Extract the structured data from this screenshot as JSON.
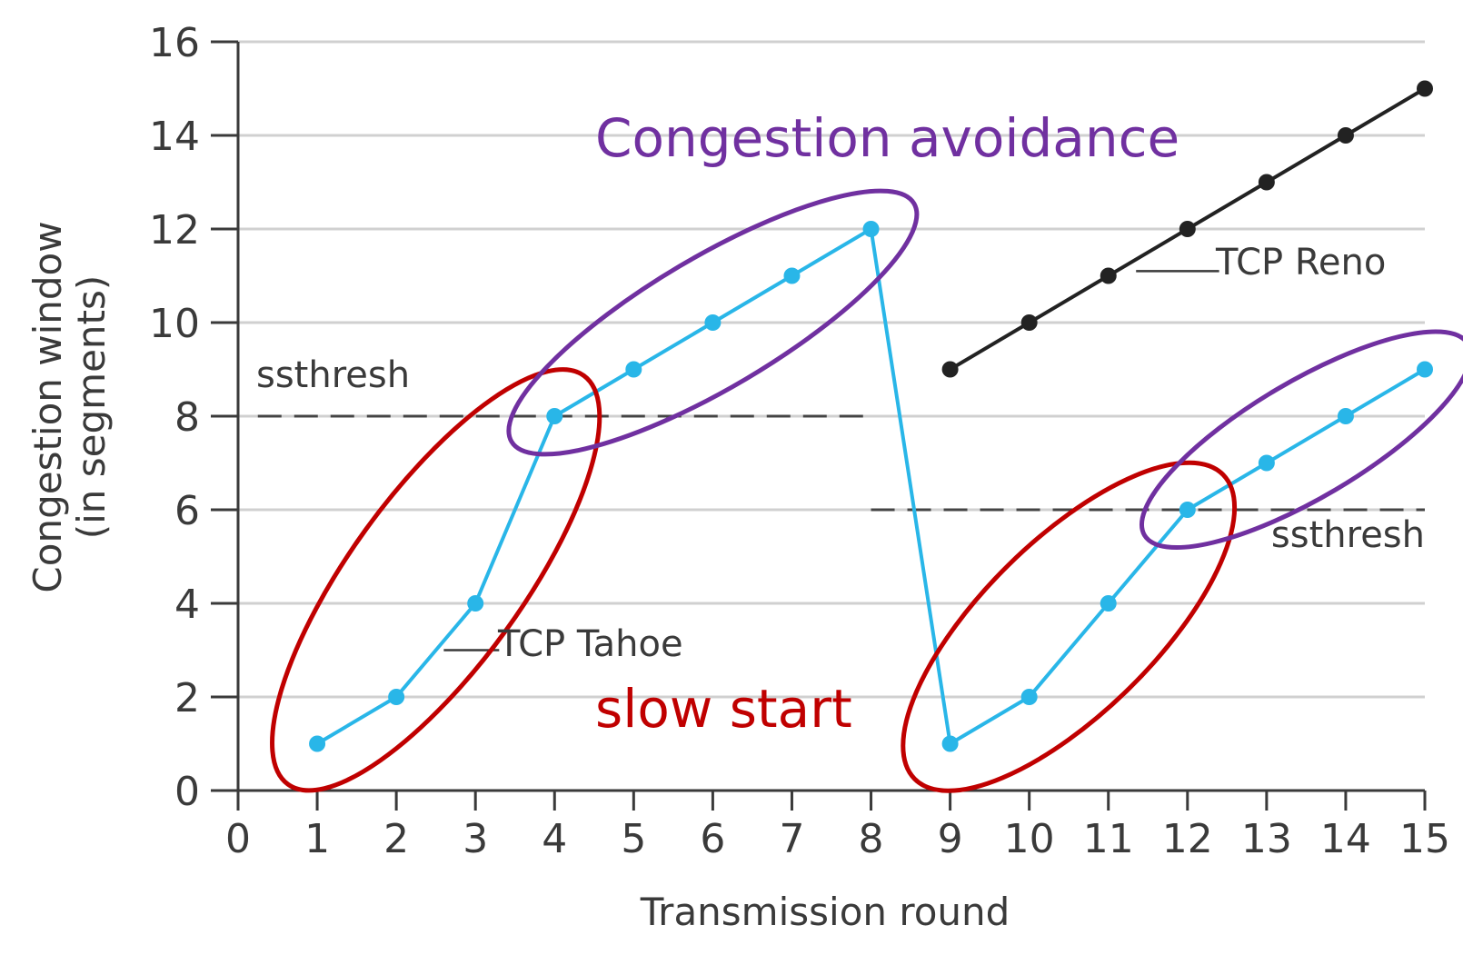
{
  "chart_data": {
    "type": "line",
    "xlabel": "Transmission round",
    "ylabel_line1": "Congestion window",
    "ylabel_line2": "(in segments)",
    "xlim": [
      0,
      15
    ],
    "ylim": [
      0,
      16
    ],
    "x_ticks": [
      "0",
      "1",
      "2",
      "3",
      "4",
      "5",
      "6",
      "7",
      "8",
      "9",
      "10",
      "11",
      "12",
      "13",
      "14",
      "15"
    ],
    "y_ticks": [
      "0",
      "2",
      "4",
      "6",
      "8",
      "10",
      "12",
      "14",
      "16"
    ],
    "grid": true,
    "series": [
      {
        "name": "TCP Tahoe",
        "color": "#29b6e8",
        "x": [
          1,
          2,
          3,
          4,
          5,
          6,
          7,
          8,
          9,
          10,
          11,
          12,
          13,
          14,
          15
        ],
        "values": [
          1,
          2,
          4,
          8,
          9,
          10,
          11,
          12,
          1,
          2,
          4,
          6,
          7,
          8,
          9
        ]
      },
      {
        "name": "TCP Reno",
        "color": "#222222",
        "x": [
          9,
          10,
          11,
          12,
          13,
          14,
          15
        ],
        "values": [
          9,
          10,
          11,
          12,
          13,
          14,
          15
        ]
      }
    ],
    "thresholds": [
      {
        "label": "ssthresh",
        "value": 8,
        "x_from": 0.25,
        "x_to": 8
      },
      {
        "label": "ssthresh",
        "value": 6,
        "x_from": 8,
        "x_to": 15
      }
    ],
    "annotations": [
      {
        "text": "Congestion avoidance",
        "color": "#7030a0"
      },
      {
        "text": "slow start",
        "color": "#c00000"
      }
    ],
    "colors": {
      "grid": "#d0d0d0",
      "axis": "#3a3a3a",
      "threshold": "#444444",
      "slow_start_ellipse": "#c00000",
      "avoidance_ellipse": "#7030a0"
    }
  }
}
